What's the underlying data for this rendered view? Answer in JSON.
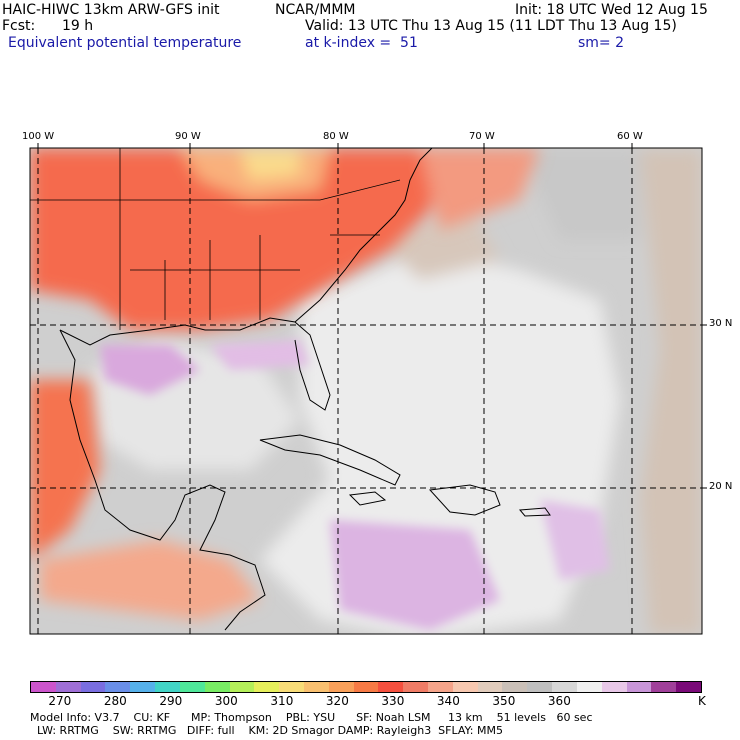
{
  "header": {
    "model": "HAIC-HIWC 13km ARW-GFS init",
    "org": "NCAR/MMM",
    "init": "Init: 18 UTC Wed 12 Aug 15",
    "fcst_label": "Fcst:",
    "fcst_value": "19 h",
    "valid": "Valid: 13 UTC Thu 13 Aug 15 (11 LDT Thu 13 Aug 15)",
    "field": "Equivalent potential temperature",
    "level": "at k-index =  51",
    "smooth": "sm= 2"
  },
  "map": {
    "lon_labels": [
      "100 W",
      "90 W",
      "80 W",
      "70 W",
      "60 W"
    ],
    "lat_labels": [
      "30 N",
      "20 N"
    ]
  },
  "colorbar": {
    "colors": [
      "#cc55cc",
      "#9f6fd6",
      "#7a6ee0",
      "#6a8fe8",
      "#56b1ea",
      "#42d4c6",
      "#4fe79a",
      "#78ec64",
      "#b4ef5a",
      "#e6ef5c",
      "#f8dc78",
      "#f9c070",
      "#f9a05a",
      "#f77a45",
      "#f5503e",
      "#f07c66",
      "#f5a48a",
      "#f7c8b0",
      "#e1ccbc",
      "#cac0b8",
      "#bfbfbf",
      "#d7d7d7",
      "#f0f0f0",
      "#e8c8e8",
      "#c896d8",
      "#a0409a",
      "#7a0a78"
    ],
    "tick_labels": [
      "270",
      "280",
      "290",
      "300",
      "310",
      "320",
      "330",
      "340",
      "350",
      "360"
    ],
    "unit": "K"
  },
  "footer": {
    "line1": "Model Info: V3.7    CU: KF      MP: Thompson    PBL: YSU      SF: Noah LSM     13 km    51 levels   60 sec",
    "line2": "  LW: RRTMG    SW: RRTMG   DIFF: full    KM: 2D Smagor DAMP: Rayleigh3  SFLAY: MM5"
  }
}
